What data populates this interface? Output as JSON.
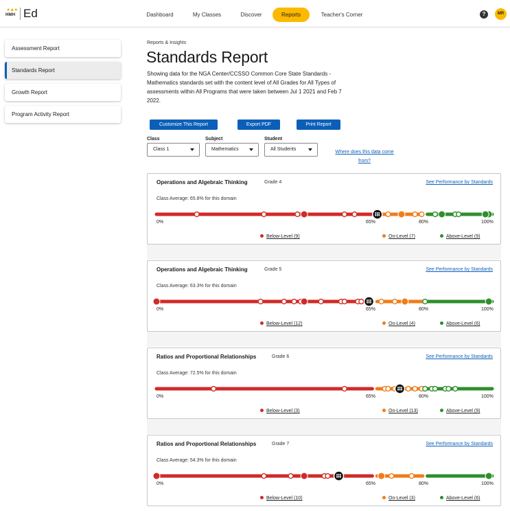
{
  "app": {
    "logo_text": "HMH",
    "name": "Ed"
  },
  "nav": {
    "items": [
      {
        "label": "Dashboard",
        "active": false
      },
      {
        "label": "My Classes",
        "active": false
      },
      {
        "label": "Discover",
        "active": false
      },
      {
        "label": "Reports",
        "active": true
      },
      {
        "label": "Teacher's Corner",
        "active": false
      }
    ],
    "help_glyph": "?",
    "avatar_initials": "MR"
  },
  "sidebar": {
    "items": [
      {
        "label": "Assessment Report",
        "active": false
      },
      {
        "label": "Standards Report",
        "active": true
      },
      {
        "label": "Growth Report",
        "active": false
      },
      {
        "label": "Program Activity Report",
        "active": false
      }
    ]
  },
  "header": {
    "breadcrumb": "Reports & Insights",
    "title": "Standards Report",
    "description": "Showing data for the NGA Center/CCSSO Common Core State Standards - Mathematics standards set with the content level of All Grades for All Types of assessments within All Programs that were taken between Jul 1 2021 and Feb 7 2022."
  },
  "actions": {
    "customize": "Customize This Report",
    "export": "Export PDF",
    "print": "Print Report"
  },
  "filters": {
    "class": {
      "label": "Class",
      "value": "Class 1"
    },
    "subject": {
      "label": "Subject",
      "value": "Mathematics"
    },
    "student": {
      "label": "Student",
      "value": "All Students"
    },
    "data_source_link": "Where does this data come from?"
  },
  "colors": {
    "below": "#d02b27",
    "on": "#ef7d1a",
    "above": "#2f8f2c",
    "accent": "#0b5fb8",
    "nav_active": "#fcb900"
  },
  "scale": {
    "ticks": [
      "0%",
      "65%",
      "80%",
      "100%"
    ],
    "tick_values": [
      0,
      65,
      80,
      100
    ]
  },
  "see_performance_label": "See Performance by Standards",
  "cards": [
    {
      "title": "Operations and Algebraic Thinking",
      "grade": "Grade 4",
      "class_average": "Class Average: 65.8% for this domain",
      "average_value": 65.8,
      "below": "Below-Level (9)",
      "on": "On-Level (7)",
      "above": "Above-Level (9)",
      "big_markers": [
        44,
        73,
        99,
        98,
        85
      ],
      "small_markers": [
        12,
        32,
        42,
        56,
        59,
        69,
        77,
        79,
        83,
        89,
        90
      ]
    },
    {
      "title": "Operations and Algebraic Thinking",
      "grade": "Grade 5",
      "class_average": "Class Average: 63.3% for this domain",
      "average_value": 63.3,
      "below": "Below-Level (12)",
      "on": "On-Level (4)",
      "above": "Above-Level (6)",
      "big_markers": [
        0,
        44,
        74,
        99
      ],
      "small_markers": [
        31,
        38,
        41,
        43,
        49,
        55,
        56,
        60,
        61,
        67,
        71,
        80
      ]
    },
    {
      "title": "Ratios and Proportional Relationships",
      "grade": "Grade 6",
      "class_average": "Class Average: 72.5% for this domain",
      "average_value": 72.5,
      "below": "Below-Level (3)",
      "on": "On-Level (13)",
      "above": "Above-Level (9)",
      "big_markers": [],
      "small_markers": [
        17,
        56,
        68,
        69,
        71,
        75,
        77,
        79,
        80,
        82,
        83,
        86,
        87,
        89
      ]
    },
    {
      "title": "Ratios and Proportional Relationships",
      "grade": "Grade 7",
      "class_average": "Class Average: 54.3% for this domain",
      "average_value": 54.3,
      "below": "Below-Level (10)",
      "on": "On-Level (3)",
      "above": "Above-Level (6)",
      "big_markers": [
        0,
        44,
        67,
        99
      ],
      "small_markers": [
        32,
        40,
        50,
        51,
        70,
        76
      ]
    }
  ]
}
